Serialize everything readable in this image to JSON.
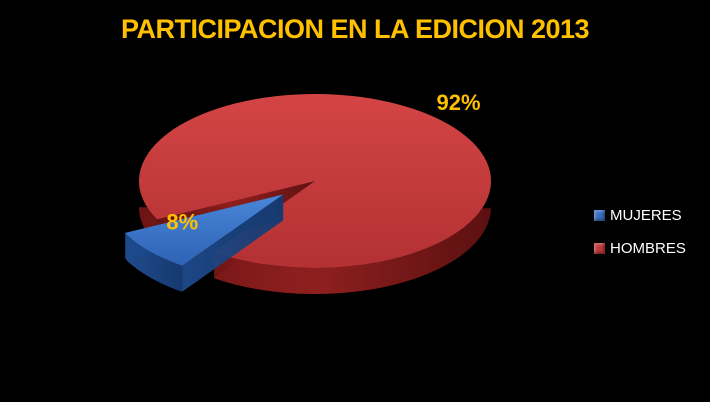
{
  "chart_data": {
    "type": "pie",
    "title": "PARTICIPACION EN LA EDICION 2013",
    "categories": [
      "MUJERES",
      "HOMBRES"
    ],
    "values": [
      8,
      92
    ],
    "data_labels": [
      "8%",
      "92%"
    ],
    "colors": [
      "#3a6fc2",
      "#c0393b"
    ],
    "legend_position": "right",
    "style": "3d-exploded"
  }
}
